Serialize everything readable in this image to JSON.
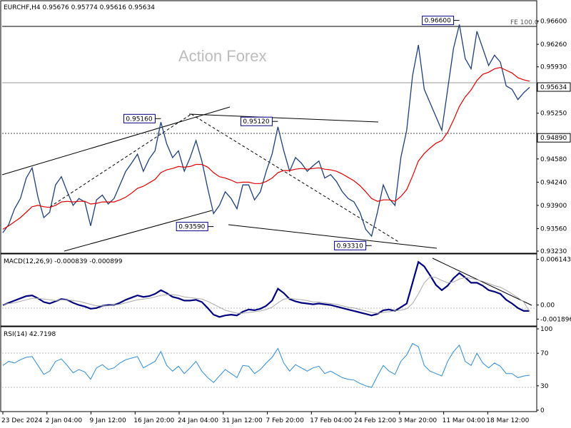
{
  "header": {
    "symbol_line": "EURCHF,H4  0.95676 0.95774 0.95616 0.95634",
    "watermark": "Action Forex",
    "fe_label": "FE 100.0"
  },
  "colors": {
    "price": "#1f3f7a",
    "ma": "#e00000",
    "macd": "#00007f",
    "signal": "#a9a9a9",
    "rsi": "#2e8bd6",
    "label_box": "#000080"
  },
  "chart_data": [
    {
      "type": "line",
      "panel": "price",
      "title": "EURCHF,H4",
      "ohlc_last": {
        "open": 0.95676,
        "high": 0.95774,
        "low": 0.95616,
        "close": 0.95634
      },
      "ylim": [
        0.9323,
        0.967
      ],
      "y_ticks": [
        "0.96600",
        "0.96260",
        "0.95930",
        "0.95634",
        "0.95250",
        "0.94890",
        "0.94580",
        "0.94240",
        "0.93900",
        "0.93560",
        "0.93230"
      ],
      "current_price": "0.95634",
      "level_line": "0.94890",
      "grid": false,
      "x_labels": [
        "23 Dec 2024",
        "2 Jan 04:00",
        "9 Jan 12:00",
        "16 Jan 20:00",
        "24 Jan 04:00",
        "31 Jan 12:00",
        "7 Feb 20:00",
        "17 Feb 04:00",
        "24 Feb 12:00",
        "3 Mar 20:00",
        "11 Mar 04:00",
        "18 Mar 12:00"
      ],
      "series": [
        {
          "values": [
            0.935,
            0.9362,
            0.9385,
            0.94,
            0.943,
            0.9445,
            0.9402,
            0.9372,
            0.938,
            0.942,
            0.9432,
            0.941,
            0.939,
            0.94,
            0.9395,
            0.936,
            0.9398,
            0.9405,
            0.9392,
            0.94,
            0.942,
            0.944,
            0.9452,
            0.9465,
            0.944,
            0.9458,
            0.947,
            0.9512,
            0.948,
            0.946,
            0.947,
            0.944,
            0.946,
            0.9485,
            0.9455,
            0.9415,
            0.9378,
            0.939,
            0.941,
            0.94,
            0.9385,
            0.942,
            0.942,
            0.9398,
            0.941,
            0.944,
            0.9465,
            0.9505,
            0.947,
            0.944,
            0.946,
            0.9452,
            0.944,
            0.9448,
            0.9455,
            0.943,
            0.9435,
            0.9425,
            0.941,
            0.94,
            0.9395,
            0.938,
            0.9355,
            0.9345,
            0.938,
            0.942,
            0.94,
            0.939,
            0.946,
            0.95,
            0.958,
            0.9625,
            0.956,
            0.954,
            0.952,
            0.95,
            0.956,
            0.962,
            0.9655,
            0.9605,
            0.959,
            0.9645,
            0.962,
            0.9595,
            0.961,
            0.96,
            0.9565,
            0.956,
            0.9545,
            0.9555,
            0.9563
          ]
        },
        {
          "values": [
            0.9355,
            0.936,
            0.9366,
            0.9372,
            0.938,
            0.9388,
            0.939,
            0.9388,
            0.9387,
            0.939,
            0.9395,
            0.9396,
            0.9395,
            0.9396,
            0.9396,
            0.9392,
            0.9393,
            0.9395,
            0.9395,
            0.9395,
            0.9398,
            0.9402,
            0.9408,
            0.9415,
            0.9418,
            0.9423,
            0.9428,
            0.9438,
            0.9442,
            0.9444,
            0.9447,
            0.9446,
            0.9447,
            0.945,
            0.945,
            0.9446,
            0.9438,
            0.9432,
            0.943,
            0.9427,
            0.9423,
            0.9424,
            0.9424,
            0.9422,
            0.9422,
            0.9425,
            0.943,
            0.9438,
            0.9441,
            0.9441,
            0.9443,
            0.9444,
            0.9443,
            0.9444,
            0.9445,
            0.9443,
            0.9442,
            0.944,
            0.9436,
            0.9431,
            0.9426,
            0.9419,
            0.941,
            0.94,
            0.9396,
            0.9398,
            0.9398,
            0.9396,
            0.9403,
            0.9413,
            0.9433,
            0.9455,
            0.9466,
            0.9474,
            0.9481,
            0.9485,
            0.9497,
            0.9515,
            0.9535,
            0.9549,
            0.9559,
            0.9573,
            0.9582,
            0.9585,
            0.959,
            0.9592,
            0.9588,
            0.9584,
            0.9577,
            0.9574,
            0.9572
          ]
        }
      ],
      "annotations": [
        {
          "text": "0.95160",
          "x_index": 27,
          "y": 0.9516
        },
        {
          "text": "0.95120",
          "x_index": 47,
          "y": 0.9512
        },
        {
          "text": "0.93590",
          "x_index": 36,
          "y": 0.9359
        },
        {
          "text": "0.93310",
          "x_index": 63,
          "y": 0.9331
        },
        {
          "text": "0.96600",
          "x_index": 78,
          "y": 0.966
        }
      ]
    },
    {
      "type": "line",
      "panel": "macd",
      "title": "MACD(12,26,9) -0.000839 -0.000899",
      "ylim": [
        -0.00215,
        0.0063
      ],
      "y_ticks": [
        "0.006143",
        "0.00",
        "-0.001896"
      ],
      "series": [
        {
          "values": [
            0.0,
            0.0003,
            0.0006,
            0.0009,
            0.0012,
            0.0013,
            0.0009,
            0.0004,
            0.0002,
            0.0005,
            0.0008,
            0.0007,
            0.0003,
            0.0,
            -0.0002,
            -0.0005,
            -0.0004,
            -0.0001,
            0.0,
            0.0,
            0.0003,
            0.0007,
            0.001,
            0.0013,
            0.0011,
            0.0012,
            0.0015,
            0.002,
            0.0016,
            0.0011,
            0.0009,
            0.0006,
            0.0006,
            0.0007,
            0.0004,
            -0.0004,
            -0.0013,
            -0.0016,
            -0.0014,
            -0.0013,
            -0.0014,
            -0.0009,
            -0.0006,
            -0.0007,
            -0.0005,
            -0.0001,
            0.0006,
            0.0022,
            0.0016,
            0.0008,
            0.0005,
            0.0003,
            0.0002,
            0.0001,
            0.0002,
            0.0001,
            0.0,
            -0.0002,
            -0.0004,
            -0.0006,
            -0.0008,
            -0.001,
            -0.0012,
            -0.0014,
            -0.0012,
            -0.0007,
            -0.0006,
            -0.0008,
            -0.0003,
            0.0002,
            0.003,
            0.0058,
            0.0052,
            0.004,
            0.0027,
            0.002,
            0.0026,
            0.0036,
            0.0043,
            0.0037,
            0.003,
            0.003,
            0.0026,
            0.002,
            0.0018,
            0.0015,
            0.0007,
            0.0002,
            -0.0004,
            -0.0008,
            -0.0008
          ]
        },
        {
          "values": [
            0.0001,
            0.0002,
            0.0003,
            0.0005,
            0.0007,
            0.0009,
            0.0009,
            0.0008,
            0.0007,
            0.0006,
            0.0007,
            0.0007,
            0.0006,
            0.0005,
            0.0003,
            0.0001,
            -0.0001,
            -0.0001,
            -0.0001,
            0.0,
            0.0001,
            0.0003,
            0.0005,
            0.0007,
            0.0008,
            0.0009,
            0.0011,
            0.0013,
            0.0014,
            0.0014,
            0.0013,
            0.0011,
            0.001,
            0.0009,
            0.0008,
            0.0005,
            0.0001,
            -0.0003,
            -0.0007,
            -0.0009,
            -0.0011,
            -0.0011,
            -0.001,
            -0.0009,
            -0.0008,
            -0.0006,
            -0.0003,
            0.0003,
            0.0008,
            0.0009,
            0.0008,
            0.0007,
            0.0006,
            0.0004,
            0.0004,
            0.0003,
            0.0002,
            0.0001,
            -0.0001,
            -0.0003,
            -0.0004,
            -0.0006,
            -0.0008,
            -0.001,
            -0.0011,
            -0.001,
            -0.0009,
            -0.0008,
            -0.0007,
            -0.0005,
            0.0002,
            0.0015,
            0.003,
            0.0038,
            0.0037,
            0.0033,
            0.003,
            0.0031,
            0.0035,
            0.0037,
            0.0036,
            0.0034,
            0.0032,
            0.0029,
            0.0026,
            0.0024,
            0.002,
            0.0015,
            0.001,
            0.0004,
            -0.0009
          ]
        }
      ]
    },
    {
      "type": "line",
      "panel": "rsi",
      "title": "RSI(14) 42.7198",
      "ylim": [
        0,
        100
      ],
      "y_ticks": [
        "100",
        "70",
        "30",
        "0"
      ],
      "levels": [
        70,
        30
      ],
      "series": [
        {
          "values": [
            55,
            60,
            58,
            62,
            65,
            66,
            55,
            44,
            48,
            60,
            63,
            55,
            46,
            50,
            47,
            38,
            52,
            56,
            50,
            52,
            58,
            62,
            64,
            66,
            52,
            56,
            60,
            72,
            55,
            48,
            54,
            45,
            52,
            60,
            48,
            40,
            34,
            42,
            50,
            45,
            40,
            55,
            54,
            45,
            50,
            58,
            65,
            76,
            58,
            48,
            56,
            52,
            48,
            52,
            54,
            45,
            48,
            44,
            40,
            38,
            37,
            33,
            30,
            28,
            42,
            55,
            48,
            44,
            60,
            68,
            82,
            78,
            55,
            48,
            45,
            42,
            60,
            72,
            80,
            60,
            55,
            70,
            58,
            52,
            58,
            54,
            45,
            45,
            40,
            42,
            43
          ]
        }
      ]
    }
  ]
}
